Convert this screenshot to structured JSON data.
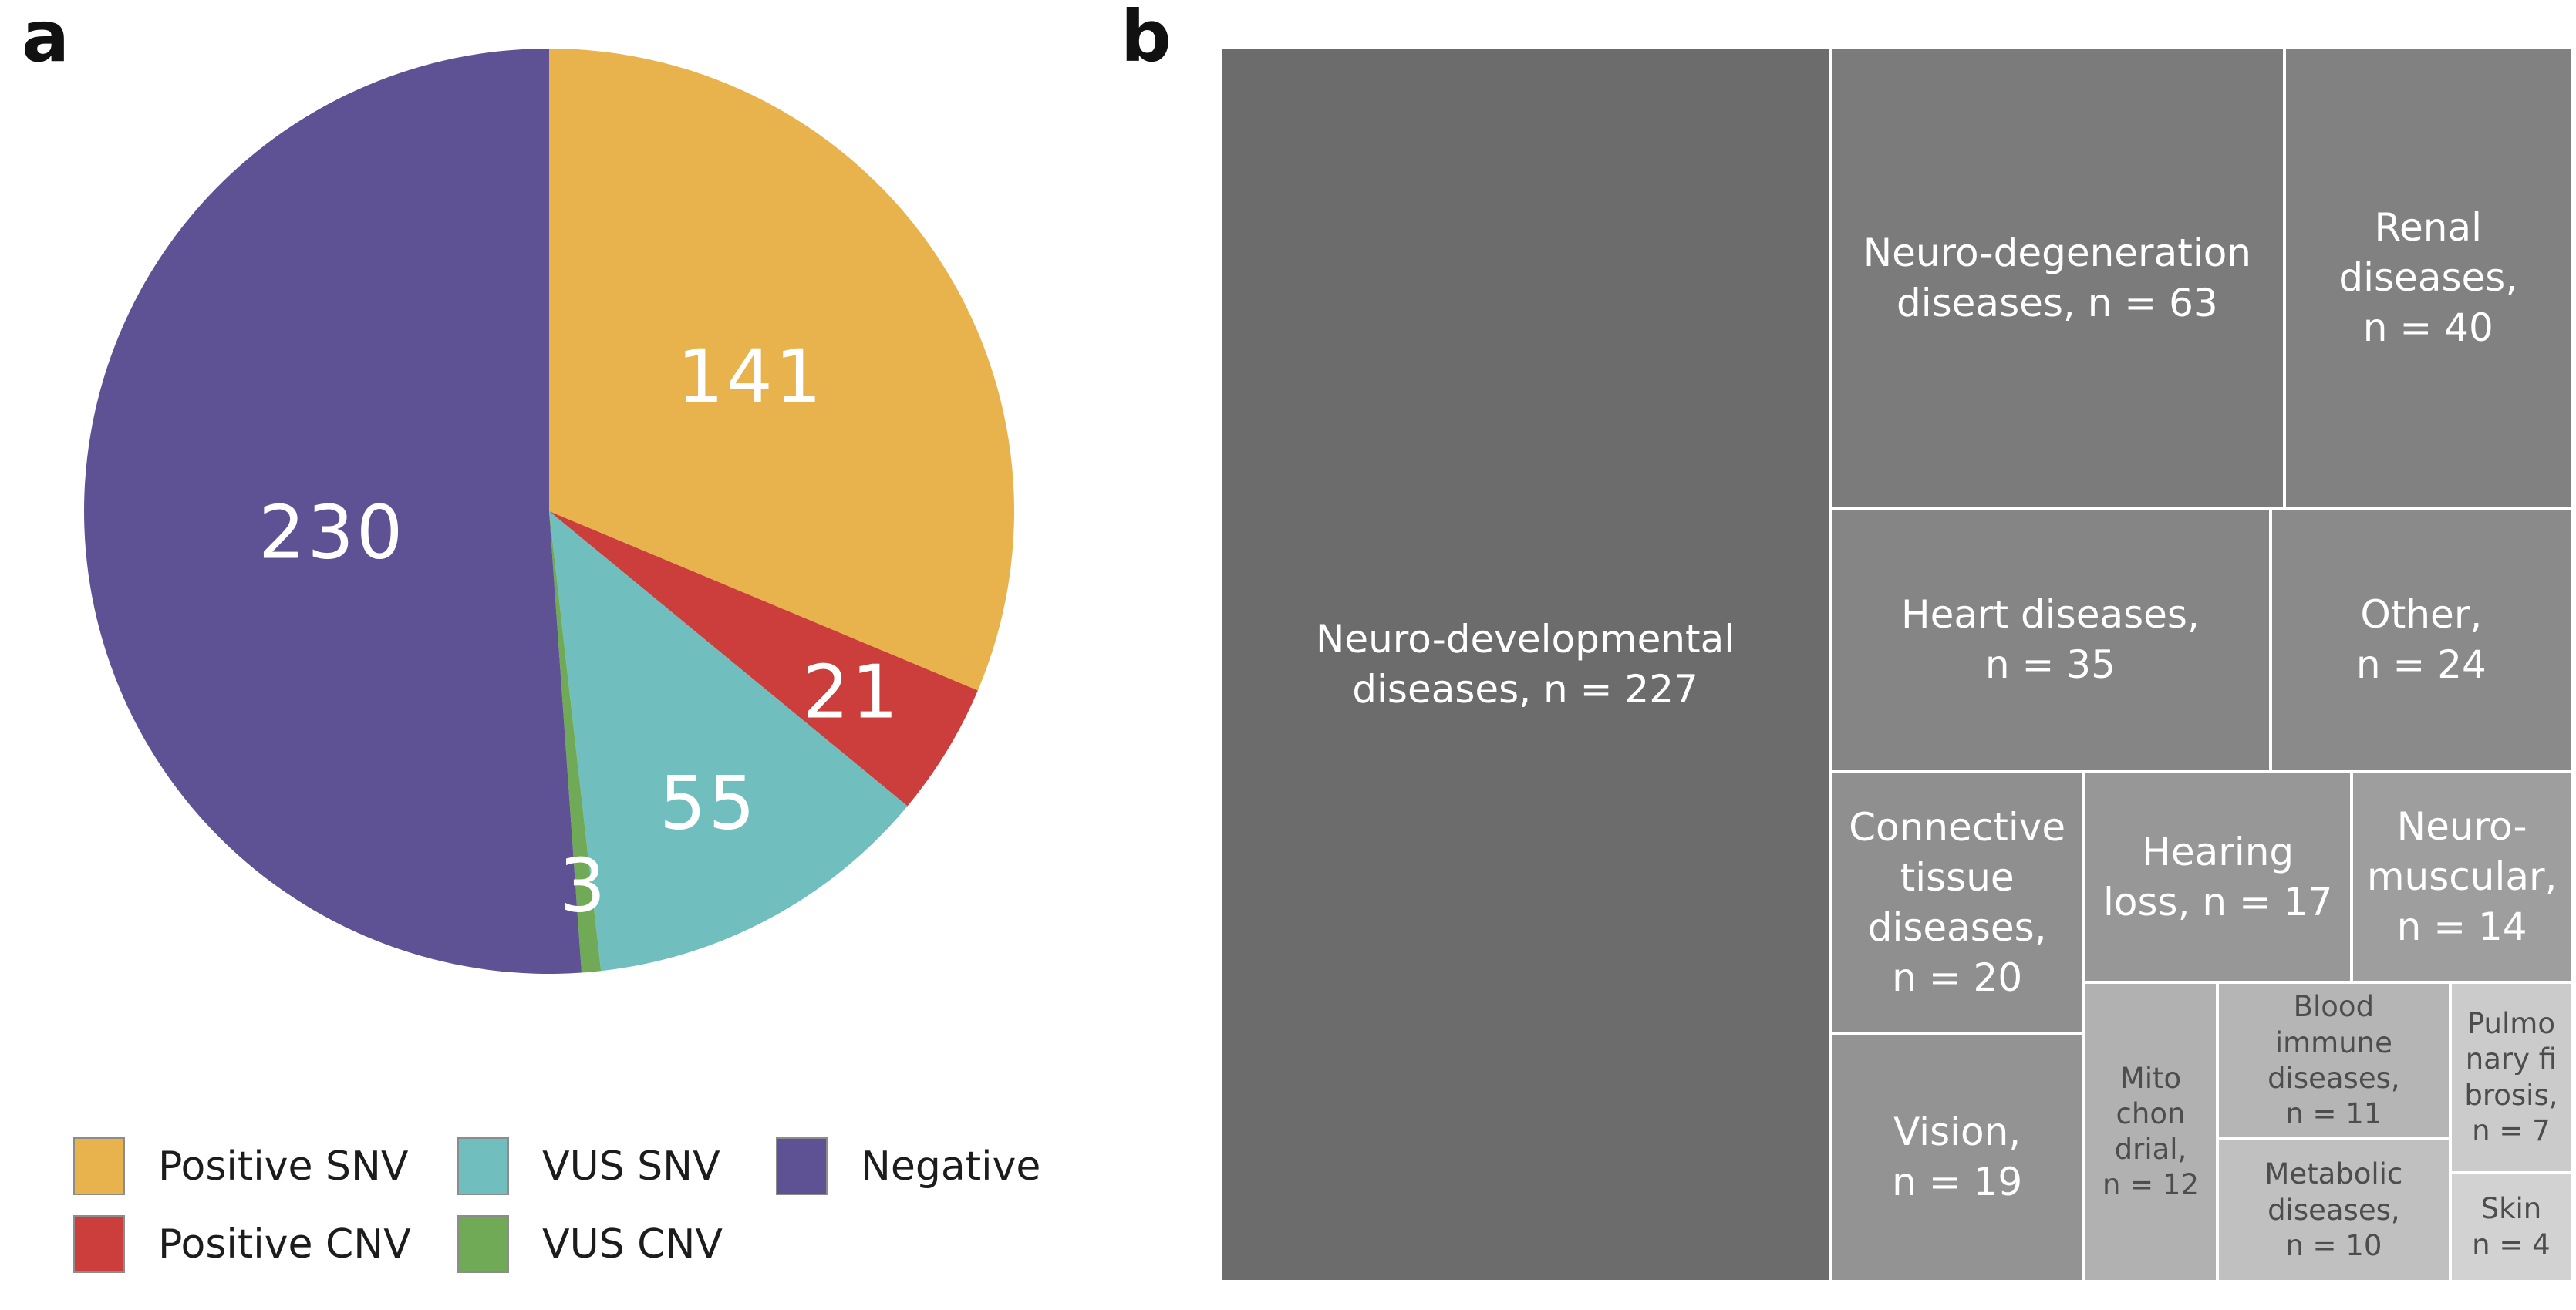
{
  "panels": {
    "a_label": "a",
    "b_label": "b"
  },
  "chart_data": [
    {
      "type": "pie",
      "panel": "a",
      "values": [
        141,
        21,
        55,
        3,
        230
      ],
      "labels": [
        "Positive SNV",
        "Positive CNV",
        "VUS SNV",
        "VUS CNV",
        "Negative"
      ],
      "colors": [
        "#e8b24c",
        "#cc3e3b",
        "#70bfbe",
        "#70aa56",
        "#5e5295"
      ],
      "total": 450,
      "start_angle_deg": 0,
      "direction": "clockwise",
      "value_label_color": "#ffffff",
      "legend_position": "bottom"
    },
    {
      "type": "treemap",
      "panel": "b",
      "items": [
        {
          "name": "Neuro-developmental diseases",
          "n": 227,
          "label": "Neuro-developmental\ndiseases, n = 227",
          "color": "#6c6c6c",
          "text_color": "#ffffff"
        },
        {
          "name": "Neuro-degeneration diseases",
          "n": 63,
          "label": "Neuro-degeneration\ndiseases, n = 63",
          "color": "#7b7b7b",
          "text_color": "#ffffff"
        },
        {
          "name": "Renal diseases",
          "n": 40,
          "label": "Renal\ndiseases,\nn = 40",
          "color": "#818181",
          "text_color": "#ffffff"
        },
        {
          "name": "Heart diseases",
          "n": 35,
          "label": "Heart diseases,\nn = 35",
          "color": "#858585",
          "text_color": "#ffffff"
        },
        {
          "name": "Other",
          "n": 24,
          "label": "Other,\nn = 24",
          "color": "#8a8a8a",
          "text_color": "#ffffff"
        },
        {
          "name": "Connective tissue diseases",
          "n": 20,
          "label": "Connective\ntissue\ndiseases,\nn = 20",
          "color": "#8f8f8f",
          "text_color": "#ffffff"
        },
        {
          "name": "Vision",
          "n": 19,
          "label": "Vision,\nn = 19",
          "color": "#939393",
          "text_color": "#ffffff"
        },
        {
          "name": "Hearing loss",
          "n": 17,
          "label": "Hearing\nloss, n = 17",
          "color": "#979797",
          "text_color": "#ffffff"
        },
        {
          "name": "Neuro-muscular",
          "n": 14,
          "label": "Neuro-\nmuscular,\nn = 14",
          "color": "#9e9e9e",
          "text_color": "#ffffff"
        },
        {
          "name": "Mitochondrial",
          "n": 12,
          "label": "Mito\nchon\ndrial,\nn = 12",
          "color": "#b1b1b1",
          "text_color": "#4d4d4d"
        },
        {
          "name": "Blood immune diseases",
          "n": 11,
          "label": "Blood\nimmune\ndiseases,\nn = 11",
          "color": "#b5b5b5",
          "text_color": "#4d4d4d"
        },
        {
          "name": "Metabolic diseases",
          "n": 10,
          "label": "Metabolic\ndiseases,\nn = 10",
          "color": "#c0c0c0",
          "text_color": "#4d4d4d"
        },
        {
          "name": "Pulmonary fibrosis",
          "n": 7,
          "label": "Pulmo\nnary fi\nbrosis,\nn = 7",
          "color": "#cbcbcb",
          "text_color": "#4d4d4d"
        },
        {
          "name": "Skin",
          "n": 4,
          "label": "Skin\nn = 4",
          "color": "#d2d2d2",
          "text_color": "#4d4d4d"
        }
      ]
    }
  ]
}
